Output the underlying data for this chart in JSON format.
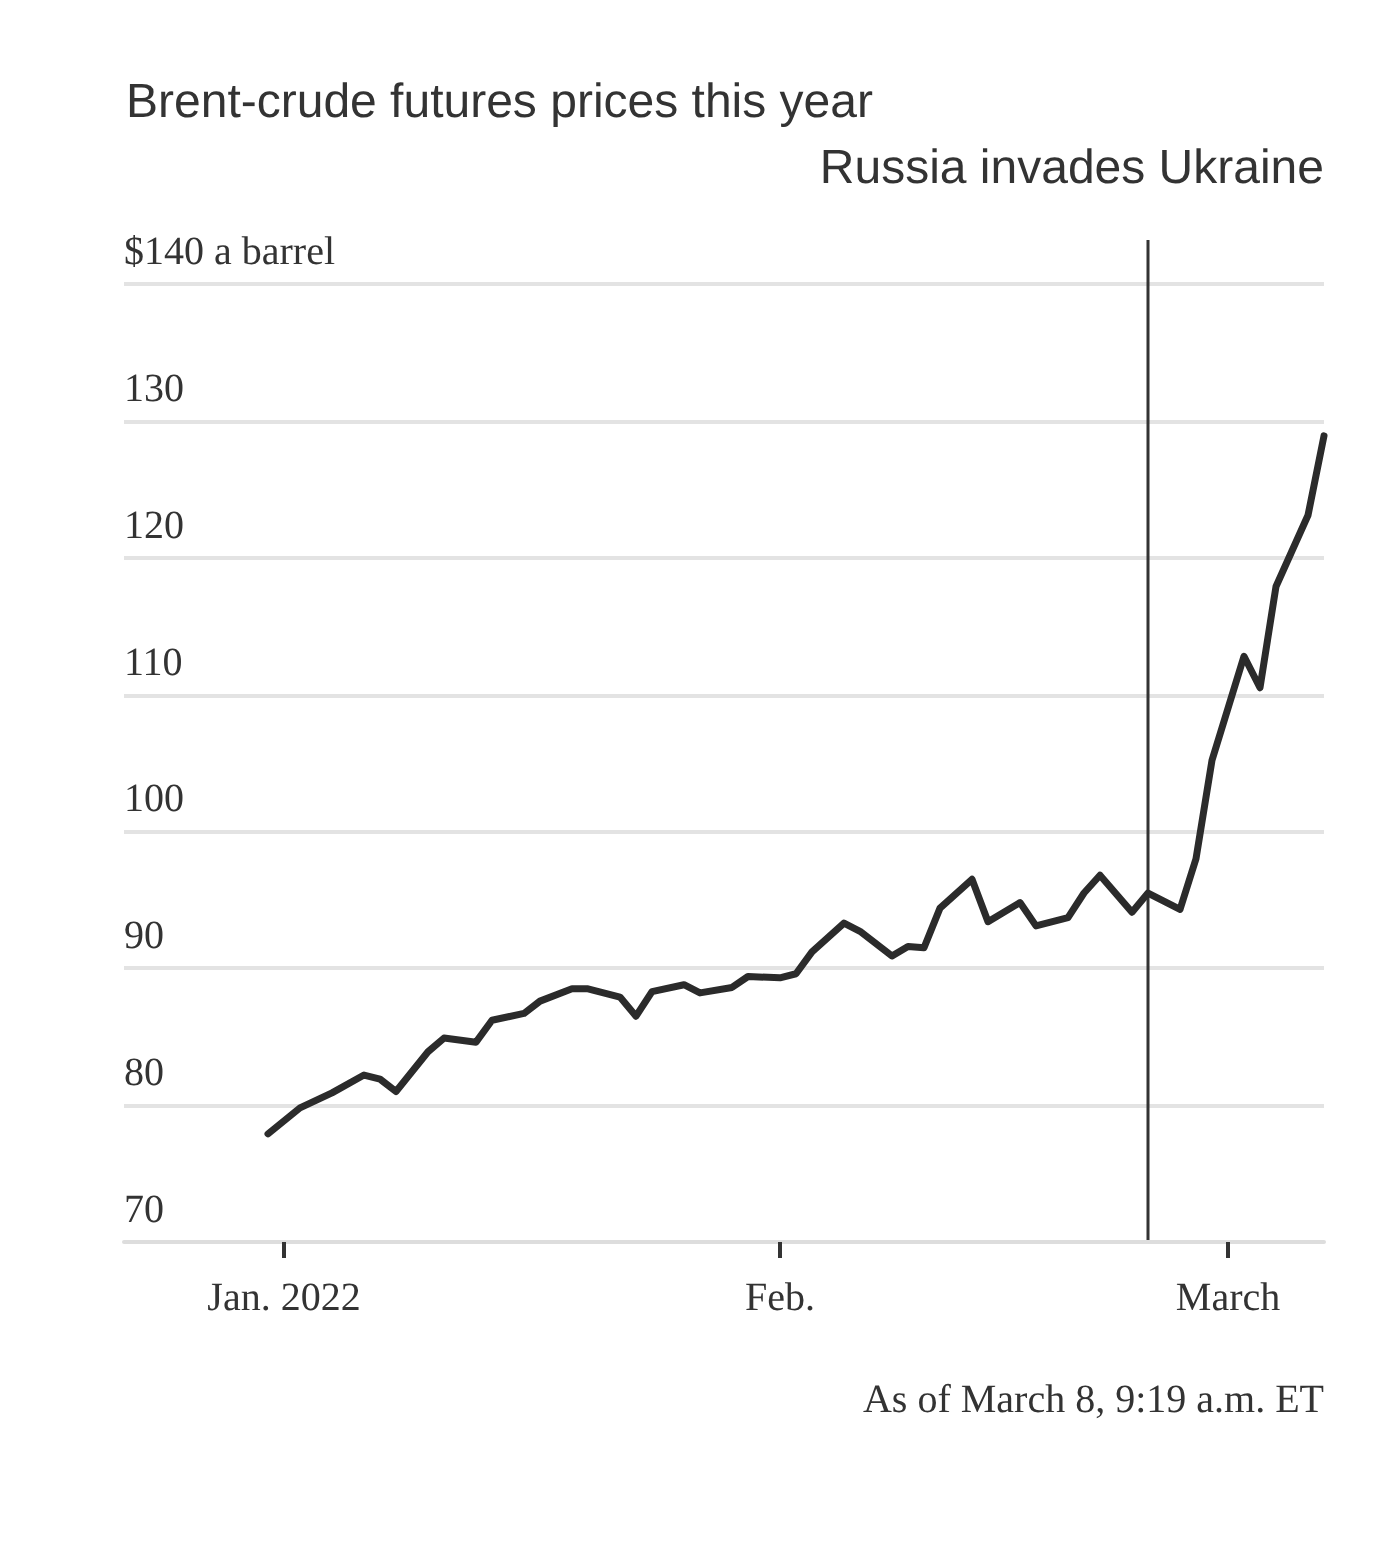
{
  "chart_data": {
    "type": "line",
    "title": "Brent-crude futures prices this year",
    "x": [
      "2021-12-31",
      "2022-01-02",
      "2022-01-04",
      "2022-01-06",
      "2022-01-07",
      "2022-01-08",
      "2022-01-10",
      "2022-01-11",
      "2022-01-13",
      "2022-01-14",
      "2022-01-16",
      "2022-01-17",
      "2022-01-19",
      "2022-01-20",
      "2022-01-22",
      "2022-01-23",
      "2022-01-24",
      "2022-01-26",
      "2022-01-27",
      "2022-01-29",
      "2022-01-30",
      "2022-02-01",
      "2022-02-02",
      "2022-02-03",
      "2022-02-05",
      "2022-02-06",
      "2022-02-08",
      "2022-02-09",
      "2022-02-10",
      "2022-02-11",
      "2022-02-13",
      "2022-02-14",
      "2022-02-16",
      "2022-02-17",
      "2022-02-19",
      "2022-02-20",
      "2022-02-21",
      "2022-02-23",
      "2022-02-24",
      "2022-02-26",
      "2022-02-27",
      "2022-02-28",
      "2022-03-02",
      "2022-03-03",
      "2022-03-04",
      "2022-03-06",
      "2022-03-07"
    ],
    "series": [
      {
        "color": "#2b2b2b",
        "values": [
          77.9,
          79.8,
          80.9,
          82.2,
          81.9,
          81.0,
          83.9,
          84.9,
          84.6,
          86.2,
          86.7,
          87.6,
          88.5,
          88.5,
          87.9,
          86.5,
          88.3,
          88.8,
          88.2,
          88.6,
          89.4,
          89.3,
          89.6,
          91.2,
          93.3,
          92.7,
          90.9,
          91.6,
          91.5,
          94.4,
          96.5,
          93.4,
          94.8,
          93.1,
          93.7,
          95.5,
          96.8,
          94.1,
          95.5,
          94.3,
          98.0,
          105.2,
          112.8,
          110.5,
          117.9,
          123.1,
          128.9
        ]
      }
    ],
    "xlim": [
      "2021-12-22",
      "2022-03-07"
    ],
    "xticks": [
      {
        "value": "2022-01-01",
        "label": "Jan. 2022"
      },
      {
        "value": "2022-02-01",
        "label": "Feb."
      },
      {
        "value": "2022-03-01",
        "label": "March"
      }
    ],
    "ylim": [
      70,
      140
    ],
    "yticks": [
      70,
      80,
      90,
      100,
      110,
      120,
      130,
      {
        "value": 140,
        "label": "$140 a barrel"
      }
    ],
    "ref_lines": [
      {
        "axis": "x",
        "value": "2022-02-24",
        "label": "Russia invades Ukraine",
        "color": "#333333"
      }
    ],
    "annotations": [
      "As of March 8, 9:19 a.m. ET"
    ],
    "grid": "y",
    "marker": "none",
    "line_style": "solid"
  }
}
